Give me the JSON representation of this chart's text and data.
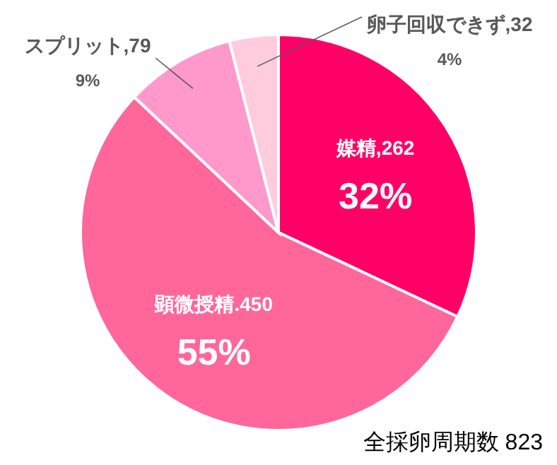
{
  "chart_data": {
    "type": "pie",
    "categories": [
      "媒精,262",
      "顕微授精.450",
      "スプリット,79",
      "卵子回収できず,32"
    ],
    "values": [
      32,
      55,
      9,
      4
    ],
    "colors": [
      "#ff0066",
      "#ff6699",
      "#ff99cc",
      "#ffccdd"
    ],
    "value_labels": [
      "32%",
      "55%",
      "9%",
      "4%"
    ],
    "legend": false,
    "annotations": [
      "全採卵周期数 823"
    ]
  }
}
